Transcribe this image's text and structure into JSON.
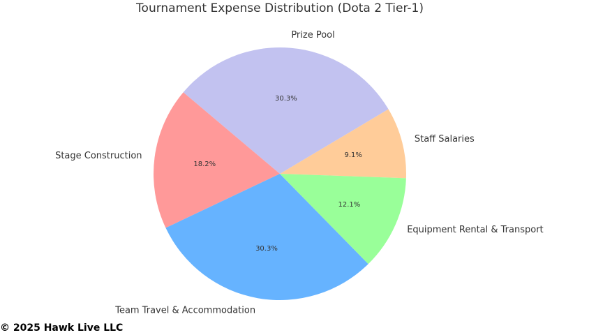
{
  "chart_data": {
    "type": "pie",
    "title": "Tournament Expense Distribution (Dota 2 Tier-1)",
    "categories": [
      "Staff Salaries",
      "Prize Pool",
      "Stage Construction",
      "Team Travel & Accommodation",
      "Equipment Rental & Transport"
    ],
    "values": [
      9.1,
      30.3,
      18.2,
      30.3,
      12.1
    ],
    "value_labels": [
      "9.1%",
      "30.3%",
      "18.2%",
      "30.3%",
      "12.1%"
    ],
    "colors": [
      "#ffcc99",
      "#c2c2f0",
      "#ff9999",
      "#66b3ff",
      "#99ff99"
    ]
  },
  "footer": "© 2025 Hawk Live LLC"
}
